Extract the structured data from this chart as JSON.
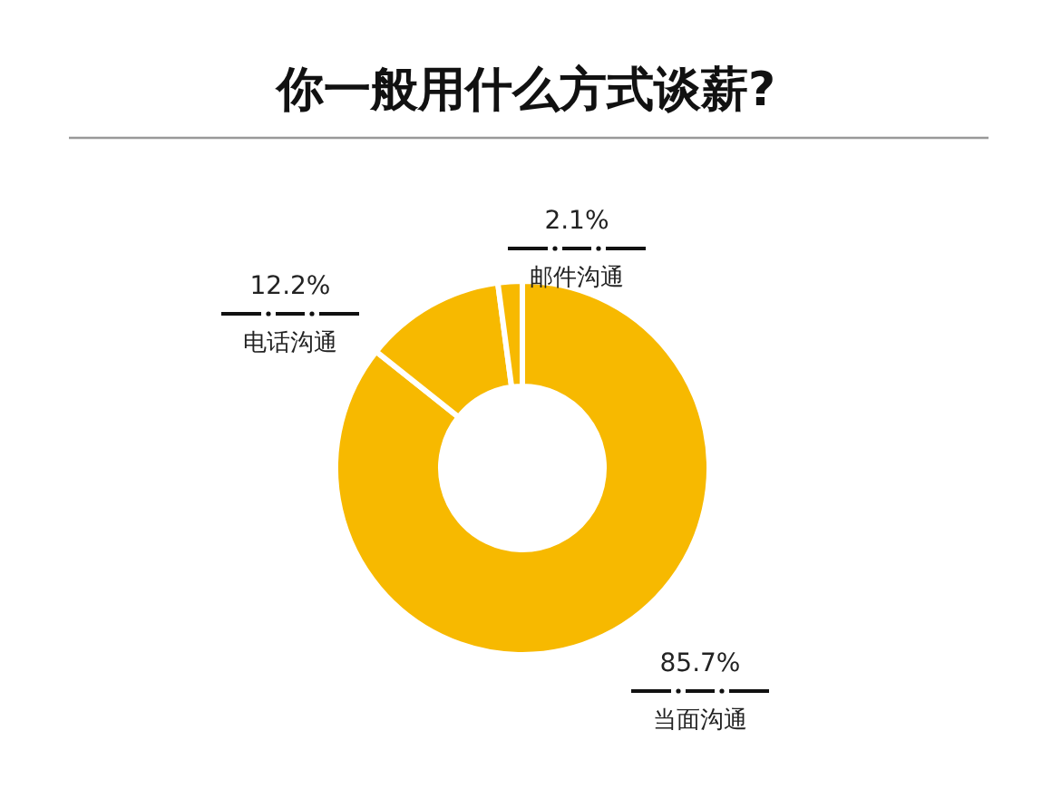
{
  "chart_data": {
    "type": "donut",
    "title": "你一般用什么方式谈薪?",
    "categories": [
      "当面沟通",
      "电话沟通",
      "邮件沟通"
    ],
    "values": [
      85.7,
      12.2,
      2.1
    ],
    "colors": [
      "#f7b900",
      "#f7b900",
      "#f7b900"
    ],
    "value_labels": [
      "85.7%",
      "12.2%",
      "2.1%"
    ]
  }
}
